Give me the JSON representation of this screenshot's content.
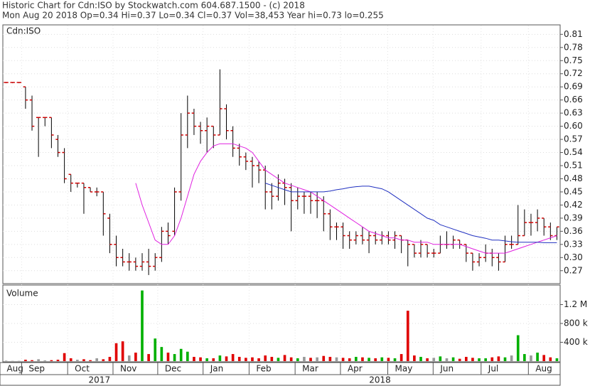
{
  "chart_data": {
    "type": "ohlc",
    "title": "Historic Chart for Cdn:ISO by Stockwatch.com 604.687.1500 - (c) 2018",
    "subtitle": "Mon Aug 20 2018  Op=0.34  Hi=0.37  Lo=0.34  Cl=0.37  Vol=38,453  Year hi=0.73  lo=0.255",
    "price_label": "Cdn:ISO",
    "volume_label": "Volume",
    "open": [
      0.7,
      0.7,
      0.7,
      0.69,
      0.66,
      0.62,
      0.62,
      0.62,
      0.57,
      0.54,
      0.49,
      0.47,
      0.47,
      0.46,
      0.45,
      0.45,
      0.39,
      0.33,
      0.3,
      0.29,
      0.29,
      0.28,
      0.29,
      0.28,
      0.3,
      0.36,
      0.36,
      0.45,
      0.58,
      0.63,
      0.6,
      0.59,
      0.6,
      0.58,
      0.64,
      0.59,
      0.55,
      0.53,
      0.52,
      0.51,
      0.5,
      0.45,
      0.44,
      0.47,
      0.46,
      0.43,
      0.44,
      0.44,
      0.43,
      0.43,
      0.4,
      0.37,
      0.37,
      0.35,
      0.34,
      0.35,
      0.34,
      0.35,
      0.34,
      0.35,
      0.34,
      0.35,
      0.34,
      0.33,
      0.31,
      0.33,
      0.31,
      0.31,
      0.33,
      0.33,
      0.34,
      0.33,
      0.31,
      0.29,
      0.3,
      0.31,
      0.3,
      0.29,
      0.33,
      0.33,
      0.35,
      0.38,
      0.38,
      0.39,
      0.37,
      0.35
    ],
    "high": [
      0.7,
      0.7,
      0.7,
      0.69,
      0.67,
      0.62,
      0.62,
      0.62,
      0.58,
      0.55,
      0.49,
      0.47,
      0.47,
      0.46,
      0.46,
      0.45,
      0.4,
      0.35,
      0.32,
      0.31,
      0.3,
      0.31,
      0.32,
      0.31,
      0.37,
      0.38,
      0.46,
      0.63,
      0.67,
      0.64,
      0.61,
      0.62,
      0.6,
      0.73,
      0.65,
      0.6,
      0.56,
      0.54,
      0.53,
      0.52,
      0.51,
      0.47,
      0.49,
      0.48,
      0.47,
      0.46,
      0.45,
      0.45,
      0.45,
      0.44,
      0.41,
      0.38,
      0.38,
      0.36,
      0.36,
      0.37,
      0.36,
      0.36,
      0.36,
      0.36,
      0.36,
      0.35,
      0.34,
      0.33,
      0.34,
      0.33,
      0.32,
      0.35,
      0.36,
      0.35,
      0.34,
      0.33,
      0.31,
      0.31,
      0.33,
      0.32,
      0.31,
      0.35,
      0.35,
      0.42,
      0.41,
      0.4,
      0.41,
      0.39,
      0.38,
      0.37
    ],
    "low": [
      0.7,
      0.7,
      0.7,
      0.64,
      0.59,
      0.53,
      0.6,
      0.55,
      0.53,
      0.47,
      0.45,
      0.46,
      0.4,
      0.45,
      0.44,
      0.35,
      0.31,
      0.28,
      0.28,
      0.27,
      0.27,
      0.27,
      0.26,
      0.27,
      0.29,
      0.33,
      0.35,
      0.43,
      0.55,
      0.58,
      0.56,
      0.54,
      0.55,
      0.58,
      0.57,
      0.53,
      0.51,
      0.5,
      0.46,
      0.47,
      0.41,
      0.41,
      0.43,
      0.42,
      0.36,
      0.41,
      0.4,
      0.4,
      0.39,
      0.36,
      0.34,
      0.34,
      0.32,
      0.32,
      0.33,
      0.33,
      0.31,
      0.33,
      0.33,
      0.33,
      0.32,
      0.31,
      0.28,
      0.3,
      0.3,
      0.3,
      0.3,
      0.31,
      0.32,
      0.32,
      0.32,
      0.29,
      0.27,
      0.28,
      0.29,
      0.28,
      0.27,
      0.29,
      0.32,
      0.33,
      0.35,
      0.35,
      0.36,
      0.35,
      0.34,
      0.34
    ],
    "close": [
      0.7,
      0.7,
      0.7,
      0.66,
      0.6,
      0.62,
      0.62,
      0.58,
      0.54,
      0.48,
      0.47,
      0.47,
      0.46,
      0.45,
      0.45,
      0.4,
      0.33,
      0.3,
      0.29,
      0.29,
      0.28,
      0.29,
      0.28,
      0.3,
      0.36,
      0.35,
      0.45,
      0.58,
      0.63,
      0.6,
      0.59,
      0.6,
      0.58,
      0.64,
      0.59,
      0.55,
      0.53,
      0.52,
      0.51,
      0.5,
      0.45,
      0.44,
      0.47,
      0.46,
      0.43,
      0.44,
      0.44,
      0.43,
      0.43,
      0.4,
      0.37,
      0.37,
      0.35,
      0.34,
      0.35,
      0.34,
      0.35,
      0.34,
      0.35,
      0.34,
      0.35,
      0.34,
      0.33,
      0.31,
      0.33,
      0.31,
      0.31,
      0.33,
      0.33,
      0.34,
      0.33,
      0.31,
      0.29,
      0.3,
      0.31,
      0.3,
      0.29,
      0.33,
      0.33,
      0.35,
      0.38,
      0.38,
      0.39,
      0.37,
      0.35,
      0.37
    ],
    "volume": [
      10000,
      5000,
      5000,
      30000,
      20000,
      40000,
      15000,
      20000,
      30000,
      170000,
      60000,
      30000,
      40000,
      20000,
      60000,
      40000,
      90000,
      380000,
      420000,
      120000,
      180000,
      1500000,
      150000,
      480000,
      300000,
      180000,
      150000,
      260000,
      200000,
      90000,
      80000,
      60000,
      60000,
      120000,
      100000,
      150000,
      90000,
      70000,
      80000,
      60000,
      120000,
      90000,
      70000,
      130000,
      80000,
      60000,
      90000,
      70000,
      80000,
      110000,
      90000,
      80000,
      70000,
      60000,
      90000,
      80000,
      70000,
      60000,
      80000,
      70000,
      60000,
      150000,
      1070000,
      120000,
      90000,
      60000,
      70000,
      100000,
      60000,
      80000,
      50000,
      90000,
      70000,
      60000,
      60000,
      80000,
      100000,
      80000,
      120000,
      550000,
      150000,
      120000,
      180000,
      130000,
      80000,
      60000
    ],
    "series": [
      {
        "color": "#e020e0",
        "values": [
          null,
          null,
          null,
          null,
          null,
          null,
          null,
          null,
          null,
          null,
          null,
          null,
          null,
          null,
          null,
          null,
          null,
          null,
          null,
          null,
          0.47,
          0.42,
          0.38,
          0.34,
          0.33,
          0.33,
          0.35,
          0.39,
          0.44,
          0.49,
          0.52,
          0.54,
          0.555,
          0.56,
          0.56,
          0.56,
          0.555,
          0.55,
          0.54,
          0.52,
          0.5,
          0.49,
          0.48,
          0.47,
          0.465,
          0.46,
          0.455,
          0.45,
          0.44,
          0.43,
          0.42,
          0.41,
          0.4,
          0.39,
          0.38,
          0.37,
          0.36,
          0.355,
          0.35,
          0.345,
          0.345,
          0.34,
          0.34,
          0.335,
          0.335,
          0.335,
          0.33,
          0.33,
          0.33,
          0.33,
          0.33,
          0.325,
          0.32,
          0.315,
          0.31,
          0.31,
          0.31,
          0.31,
          0.315,
          0.32,
          0.325,
          0.33,
          0.335,
          0.34,
          0.345,
          0.35
        ]
      },
      {
        "color": "#2030c0",
        "values": [
          null,
          null,
          null,
          null,
          null,
          null,
          null,
          null,
          null,
          null,
          null,
          null,
          null,
          null,
          null,
          null,
          null,
          null,
          null,
          null,
          null,
          null,
          null,
          null,
          null,
          null,
          null,
          null,
          null,
          null,
          null,
          null,
          null,
          null,
          null,
          null,
          null,
          null,
          null,
          null,
          0.47,
          0.465,
          0.46,
          0.455,
          0.45,
          0.45,
          0.45,
          0.45,
          0.45,
          0.45,
          0.452,
          0.455,
          0.457,
          0.46,
          0.462,
          0.463,
          0.463,
          0.46,
          0.457,
          0.45,
          0.44,
          0.43,
          0.42,
          0.41,
          0.4,
          0.39,
          0.385,
          0.375,
          0.37,
          0.365,
          0.36,
          0.355,
          0.35,
          0.347,
          0.344,
          0.34,
          0.34,
          0.338,
          0.336,
          0.335,
          0.335,
          0.335,
          0.335,
          0.334,
          0.334,
          0.334
        ]
      }
    ],
    "bar_color": "#000000",
    "tick_color": "#d00000",
    "up_color": "#00b000",
    "down_color": "#e00000",
    "flat_color": "#999999",
    "grid": true,
    "xlim": [
      -0.5,
      85.5
    ],
    "xticks": [
      {
        "value": -1.0,
        "label": "Aug"
      },
      {
        "value": 2.4,
        "label": "Sep"
      },
      {
        "value": 9.5,
        "label": "Oct"
      },
      {
        "value": 16.5,
        "label": "Nov"
      },
      {
        "value": 23.4,
        "label": "Dec"
      },
      {
        "value": 30.4,
        "label": "Jan"
      },
      {
        "value": 37.5,
        "label": "Feb"
      },
      {
        "value": 44.6,
        "label": "Mar"
      },
      {
        "value": 51.6,
        "label": "Apr"
      },
      {
        "value": 58.9,
        "label": "May"
      },
      {
        "value": 65.9,
        "label": "Jun"
      },
      {
        "value": 73.3,
        "label": "Jul"
      },
      {
        "value": 80.6,
        "label": "Aug"
      }
    ],
    "year_ticks": [
      {
        "value": 14.4,
        "label": "2017"
      },
      {
        "value": 57.7,
        "label": "2018"
      }
    ],
    "ylim": [
      0.242,
      0.83
    ],
    "yticks": [
      0.27,
      {
        "value": 0.3,
        "label": "0.30"
      },
      0.33,
      0.36,
      0.39,
      0.42,
      0.45,
      0.48,
      0.51,
      0.54,
      0.57,
      {
        "value": 0.6,
        "label": "0.60"
      },
      0.63,
      0.66,
      0.69,
      0.72,
      0.75,
      0.78,
      0.81
    ],
    "y2lim": [
      0,
      1600000
    ],
    "y2ticks": [
      {
        "value": 400000,
        "label": "400 k"
      },
      {
        "value": 800000,
        "label": "800 k"
      },
      {
        "value": 1200000,
        "label": "1.2 M"
      }
    ]
  }
}
